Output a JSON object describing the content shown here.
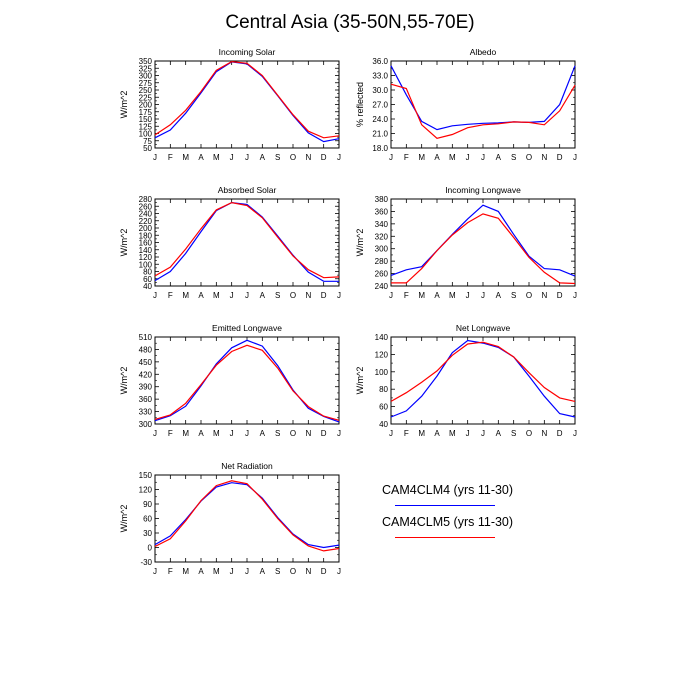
{
  "title": "Central Asia (35-50N,55-70E)",
  "months": [
    "J",
    "F",
    "M",
    "A",
    "M",
    "J",
    "J",
    "A",
    "S",
    "O",
    "N",
    "D",
    "J"
  ],
  "colors": {
    "cam4": "#0000ff",
    "cam5": "#ff0000"
  },
  "legend": [
    {
      "label": "CAM4CLM4 (yrs 11-30)",
      "color": "#0000ff"
    },
    {
      "label": "CAM4CLM5 (yrs 11-30)",
      "color": "#ff0000"
    }
  ],
  "chart_data": [
    {
      "type": "line",
      "title": "Incoming Solar",
      "ylabel": "W/m^2",
      "ylim": [
        50,
        350
      ],
      "yticks": [
        50,
        75,
        100,
        125,
        150,
        175,
        200,
        225,
        250,
        275,
        300,
        325,
        350
      ],
      "series": [
        {
          "key": "cam4",
          "values": [
            85,
            112,
            170,
            240,
            313,
            347,
            340,
            297,
            230,
            162,
            102,
            72,
            82
          ]
        },
        {
          "key": "cam5",
          "values": [
            95,
            130,
            180,
            245,
            318,
            348,
            342,
            300,
            232,
            165,
            108,
            85,
            92
          ]
        }
      ]
    },
    {
      "type": "line",
      "title": "Albedo",
      "ylabel": "% reflected",
      "ylim": [
        18,
        36
      ],
      "yticks": [
        "18.0",
        "21.0",
        "24.0",
        "27.0",
        "30.0",
        "33.0",
        "36.0"
      ],
      "series": [
        {
          "key": "cam4",
          "values": [
            35.0,
            29.0,
            23.5,
            21.8,
            22.6,
            22.9,
            23.1,
            23.2,
            23.4,
            23.3,
            23.5,
            27.0,
            35.0
          ]
        },
        {
          "key": "cam5",
          "values": [
            31.2,
            30.3,
            22.8,
            20.0,
            20.8,
            22.2,
            22.8,
            23.0,
            23.4,
            23.3,
            22.8,
            25.7,
            31.0
          ]
        }
      ]
    },
    {
      "type": "line",
      "title": "Absorbed Solar",
      "ylabel": "W/m^2",
      "ylim": [
        40,
        280
      ],
      "yticks": [
        40,
        60,
        80,
        100,
        120,
        140,
        160,
        180,
        200,
        220,
        240,
        260,
        280
      ],
      "series": [
        {
          "key": "cam4",
          "values": [
            55,
            80,
            130,
            190,
            248,
            270,
            265,
            230,
            178,
            125,
            78,
            53,
            53
          ]
        },
        {
          "key": "cam5",
          "values": [
            68,
            92,
            142,
            198,
            250,
            270,
            262,
            228,
            175,
            123,
            85,
            63,
            65
          ]
        }
      ]
    },
    {
      "type": "line",
      "title": "Incoming Longwave",
      "ylabel": "W/m^2",
      "ylim": [
        240,
        380
      ],
      "yticks": [
        240,
        260,
        280,
        300,
        320,
        340,
        360,
        380
      ],
      "series": [
        {
          "key": "cam4",
          "values": [
            257,
            266,
            271,
            297,
            323,
            348,
            370,
            360,
            323,
            288,
            268,
            266,
            256
          ]
        },
        {
          "key": "cam5",
          "values": [
            245,
            245,
            268,
            297,
            322,
            342,
            356,
            349,
            318,
            286,
            262,
            245,
            244
          ]
        }
      ]
    },
    {
      "type": "line",
      "title": "Emitted Longwave",
      "ylabel": "W/m^2",
      "ylim": [
        300,
        510
      ],
      "yticks": [
        300,
        330,
        360,
        390,
        420,
        450,
        480,
        510
      ],
      "series": [
        {
          "key": "cam4",
          "values": [
            308,
            320,
            343,
            392,
            445,
            484,
            502,
            488,
            441,
            382,
            338,
            318,
            305
          ]
        },
        {
          "key": "cam5",
          "values": [
            311,
            322,
            350,
            395,
            442,
            475,
            490,
            478,
            435,
            380,
            342,
            319,
            309
          ]
        }
      ]
    },
    {
      "type": "line",
      "title": "Net Longwave",
      "ylabel": "W/m^2",
      "ylim": [
        40,
        140
      ],
      "yticks": [
        40,
        60,
        80,
        100,
        120,
        140
      ],
      "series": [
        {
          "key": "cam4",
          "values": [
            48,
            55,
            72,
            95,
            122,
            136,
            133,
            128,
            117,
            95,
            72,
            52,
            48
          ]
        },
        {
          "key": "cam5",
          "values": [
            66,
            76,
            88,
            101,
            119,
            132,
            134,
            129,
            117,
            99,
            82,
            70,
            66
          ]
        }
      ]
    },
    {
      "type": "line",
      "title": "Net Radiation",
      "ylabel": "W/m^2",
      "ylim": [
        -30,
        150
      ],
      "yticks": [
        -30,
        0,
        30,
        60,
        90,
        120,
        150
      ],
      "series": [
        {
          "key": "cam4",
          "values": [
            6,
            24,
            58,
            96,
            125,
            134,
            130,
            102,
            62,
            28,
            6,
            0,
            5
          ]
        },
        {
          "key": "cam5",
          "values": [
            2,
            18,
            55,
            97,
            128,
            138,
            132,
            100,
            60,
            26,
            3,
            -7,
            -2
          ]
        }
      ]
    }
  ]
}
